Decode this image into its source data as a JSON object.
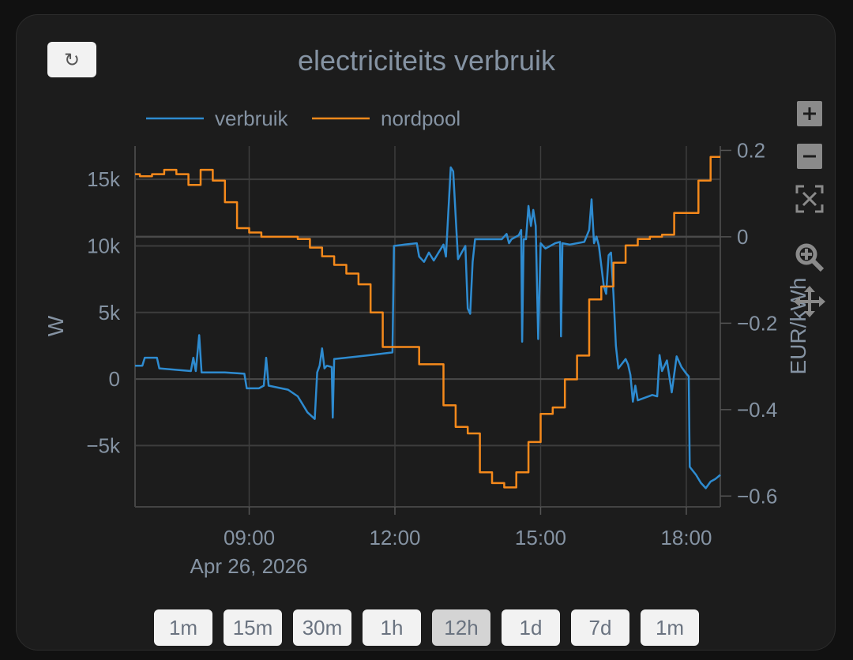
{
  "refresh_icon": "↻",
  "chart_data": {
    "type": "line",
    "title": "electriciteits verbruik",
    "date_label": "Apr 26, 2026",
    "x_ticks": [
      "09:00",
      "12:00",
      "15:00",
      "18:00"
    ],
    "x_tick_hours": [
      9,
      12,
      15,
      18
    ],
    "x_range_hours": [
      6.65,
      18.7
    ],
    "y_left": {
      "label": "W",
      "range": [
        -9600,
        17500
      ],
      "ticks": [
        {
          "v": 15000,
          "t": "15k"
        },
        {
          "v": 10000,
          "t": "10k"
        },
        {
          "v": 5000,
          "t": "5k"
        },
        {
          "v": 0,
          "t": "0"
        },
        {
          "v": -5000,
          "t": "−5k"
        }
      ]
    },
    "y_right": {
      "label": "EUR/kWh",
      "range": [
        -0.625,
        0.21
      ],
      "ticks": [
        {
          "v": 0.2,
          "t": "0.2"
        },
        {
          "v": 0,
          "t": "0"
        },
        {
          "v": -0.2,
          "t": "−0.2"
        },
        {
          "v": -0.4,
          "t": "−0.4"
        },
        {
          "v": -0.6,
          "t": "−0.6"
        }
      ]
    },
    "legend_position": "top",
    "grid": true,
    "series": [
      {
        "name": "verbruik",
        "axis": "left",
        "color": "#2e8bd0",
        "step": false,
        "points": [
          [
            6.65,
            1000
          ],
          [
            6.8,
            1000
          ],
          [
            6.85,
            1600
          ],
          [
            7.1,
            1600
          ],
          [
            7.15,
            800
          ],
          [
            7.8,
            600
          ],
          [
            7.85,
            1600
          ],
          [
            7.9,
            600
          ],
          [
            7.97,
            3300
          ],
          [
            8.02,
            500
          ],
          [
            8.5,
            500
          ],
          [
            8.9,
            400
          ],
          [
            8.95,
            -700
          ],
          [
            9.2,
            -700
          ],
          [
            9.3,
            -500
          ],
          [
            9.35,
            1600
          ],
          [
            9.4,
            -500
          ],
          [
            9.8,
            -800
          ],
          [
            10.0,
            -1300
          ],
          [
            10.2,
            -2500
          ],
          [
            10.35,
            -3000
          ],
          [
            10.4,
            500
          ],
          [
            10.45,
            1000
          ],
          [
            10.5,
            2300
          ],
          [
            10.55,
            800
          ],
          [
            10.6,
            1000
          ],
          [
            10.7,
            900
          ],
          [
            10.72,
            -2900
          ],
          [
            10.75,
            1500
          ],
          [
            11.0,
            1600
          ],
          [
            11.5,
            1800
          ],
          [
            11.95,
            2000
          ],
          [
            11.98,
            10000
          ],
          [
            12.2,
            10100
          ],
          [
            12.45,
            10200
          ],
          [
            12.5,
            9200
          ],
          [
            12.6,
            8800
          ],
          [
            12.7,
            9500
          ],
          [
            12.8,
            8900
          ],
          [
            12.9,
            9500
          ],
          [
            13.0,
            10100
          ],
          [
            13.05,
            9200
          ],
          [
            13.15,
            15900
          ],
          [
            13.2,
            15600
          ],
          [
            13.3,
            9000
          ],
          [
            13.45,
            10000
          ],
          [
            13.5,
            5300
          ],
          [
            13.55,
            4900
          ],
          [
            13.6,
            8800
          ],
          [
            13.65,
            10500
          ],
          [
            13.9,
            10500
          ],
          [
            14.2,
            10500
          ],
          [
            14.3,
            10900
          ],
          [
            14.35,
            10200
          ],
          [
            14.4,
            10500
          ],
          [
            14.55,
            10800
          ],
          [
            14.6,
            11200
          ],
          [
            14.62,
            2800
          ],
          [
            14.65,
            10500
          ],
          [
            14.7,
            10500
          ],
          [
            14.75,
            13000
          ],
          [
            14.8,
            11500
          ],
          [
            14.85,
            12700
          ],
          [
            14.9,
            11500
          ],
          [
            14.95,
            3000
          ],
          [
            15.0,
            10200
          ],
          [
            15.1,
            9800
          ],
          [
            15.3,
            10200
          ],
          [
            15.4,
            10300
          ],
          [
            15.42,
            3200
          ],
          [
            15.45,
            10200
          ],
          [
            15.6,
            10100
          ],
          [
            15.9,
            10300
          ],
          [
            16.0,
            11200
          ],
          [
            16.05,
            13500
          ],
          [
            16.1,
            10200
          ],
          [
            16.15,
            10700
          ],
          [
            16.2,
            10000
          ],
          [
            16.3,
            7000
          ],
          [
            16.35,
            6400
          ],
          [
            16.4,
            9300
          ],
          [
            16.45,
            9500
          ],
          [
            16.5,
            6400
          ],
          [
            16.55,
            2500
          ],
          [
            16.6,
            800
          ],
          [
            16.75,
            1500
          ],
          [
            16.8,
            1100
          ],
          [
            16.85,
            300
          ],
          [
            16.9,
            -1700
          ],
          [
            16.95,
            -500
          ],
          [
            17.0,
            -1600
          ],
          [
            17.3,
            -1200
          ],
          [
            17.4,
            -1300
          ],
          [
            17.45,
            1800
          ],
          [
            17.5,
            600
          ],
          [
            17.6,
            1400
          ],
          [
            17.7,
            -1000
          ],
          [
            17.8,
            1700
          ],
          [
            17.9,
            900
          ],
          [
            18.0,
            400
          ],
          [
            18.05,
            200
          ],
          [
            18.07,
            -6600
          ],
          [
            18.2,
            -7200
          ],
          [
            18.3,
            -7800
          ],
          [
            18.4,
            -8200
          ],
          [
            18.5,
            -7700
          ],
          [
            18.6,
            -7500
          ],
          [
            18.7,
            -7200
          ]
        ]
      },
      {
        "name": "nordpool",
        "axis": "right",
        "color": "#f5891b",
        "step": true,
        "points": [
          [
            6.65,
            0.145
          ],
          [
            6.75,
            0.14
          ],
          [
            7.0,
            0.145
          ],
          [
            7.25,
            0.155
          ],
          [
            7.5,
            0.145
          ],
          [
            7.75,
            0.12
          ],
          [
            8.0,
            0.155
          ],
          [
            8.25,
            0.13
          ],
          [
            8.5,
            0.08
          ],
          [
            8.75,
            0.02
          ],
          [
            9.0,
            0.01
          ],
          [
            9.25,
            0.0
          ],
          [
            10.0,
            -0.005
          ],
          [
            10.25,
            -0.025
          ],
          [
            10.5,
            -0.045
          ],
          [
            10.75,
            -0.065
          ],
          [
            11.0,
            -0.085
          ],
          [
            11.25,
            -0.11
          ],
          [
            11.5,
            -0.175
          ],
          [
            11.75,
            -0.255
          ],
          [
            12.0,
            -0.255
          ],
          [
            12.25,
            -0.255
          ],
          [
            12.5,
            -0.295
          ],
          [
            13.0,
            -0.39
          ],
          [
            13.25,
            -0.44
          ],
          [
            13.5,
            -0.455
          ],
          [
            13.75,
            -0.545
          ],
          [
            14.0,
            -0.57
          ],
          [
            14.25,
            -0.58
          ],
          [
            14.5,
            -0.545
          ],
          [
            14.75,
            -0.475
          ],
          [
            15.0,
            -0.41
          ],
          [
            15.25,
            -0.395
          ],
          [
            15.5,
            -0.33
          ],
          [
            15.75,
            -0.275
          ],
          [
            16.0,
            -0.145
          ],
          [
            16.25,
            -0.115
          ],
          [
            16.5,
            -0.06
          ],
          [
            16.75,
            -0.02
          ],
          [
            17.0,
            -0.005
          ],
          [
            17.25,
            0.0
          ],
          [
            17.5,
            0.005
          ],
          [
            17.75,
            0.055
          ],
          [
            18.0,
            0.055
          ],
          [
            18.25,
            0.13
          ],
          [
            18.5,
            0.185
          ],
          [
            18.7,
            0.185
          ]
        ]
      }
    ]
  },
  "modebar": {
    "zoom_in_icon": "zoom-in-icon",
    "zoom_out_icon": "zoom-out-icon",
    "autoscale_icon": "autoscale-icon",
    "zoom_icon": "zoom-icon",
    "pan_icon": "pan-icon"
  },
  "range_buttons": [
    {
      "label": "1m",
      "active": false
    },
    {
      "label": "15m",
      "active": false
    },
    {
      "label": "30m",
      "active": false
    },
    {
      "label": "1h",
      "active": false
    },
    {
      "label": "12h",
      "active": true
    },
    {
      "label": "1d",
      "active": false
    },
    {
      "label": "7d",
      "active": false
    },
    {
      "label": "1m",
      "active": false
    }
  ]
}
